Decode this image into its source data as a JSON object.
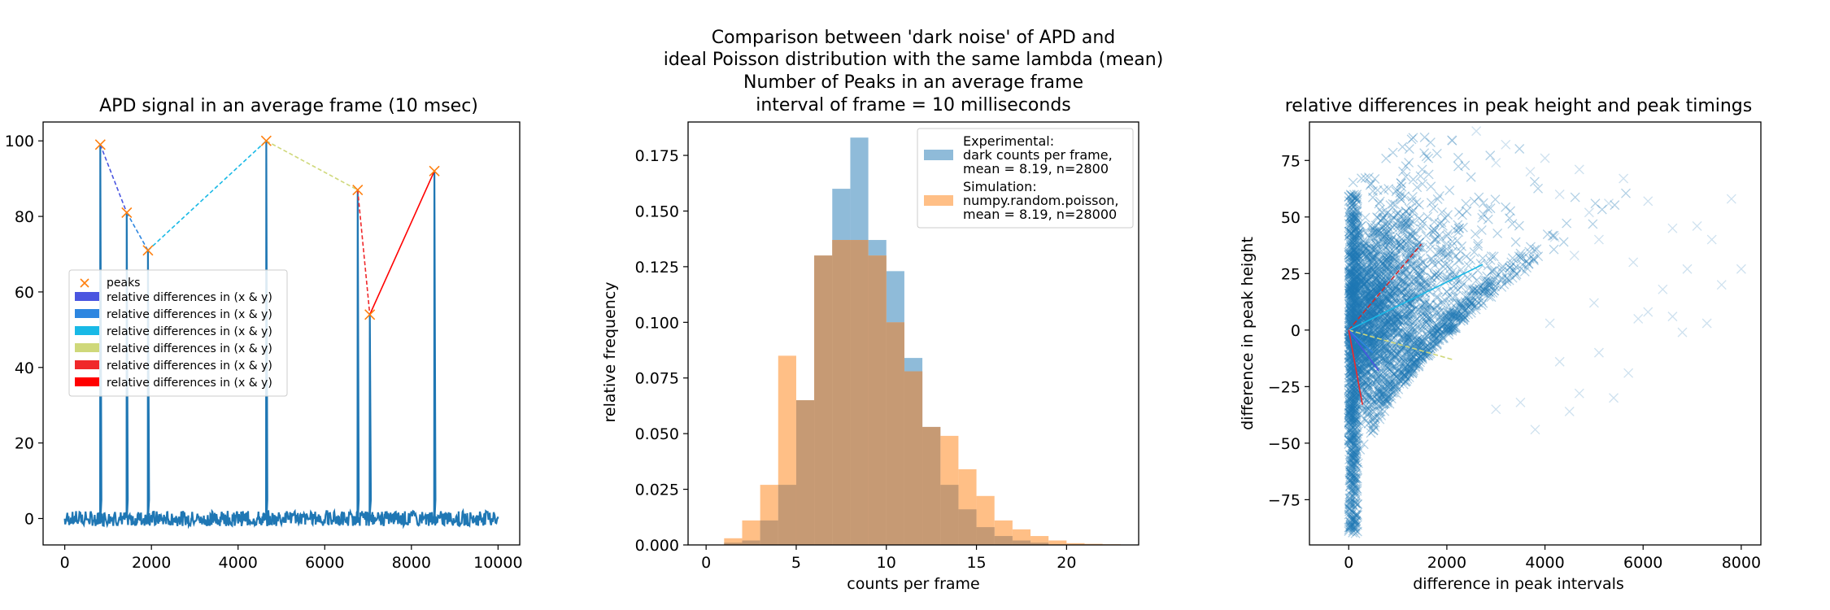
{
  "figure": {
    "suptitle": [
      "Comparison between 'dark noise' of APD and",
      "ideal Poisson distribution with the same lambda (mean)",
      "Number of Peaks in an average frame",
      "interval of frame = 10 milliseconds"
    ]
  },
  "chart_data": [
    {
      "type": "line",
      "title": "APD signal in an average frame (10 msec)",
      "xlabel": "",
      "ylabel": "",
      "xlim": [
        -500,
        10500
      ],
      "ylim": [
        -7,
        105
      ],
      "xticks": [
        0,
        2000,
        4000,
        6000,
        8000,
        10000
      ],
      "yticks": [
        0,
        20,
        40,
        60,
        80,
        100
      ],
      "signal_color": "#1f77b4",
      "baseline_range": [
        -2,
        2
      ],
      "peaks": {
        "label": "peaks",
        "color": "#ff7f0e",
        "x": [
          820,
          1430,
          1920,
          4650,
          6760,
          7040,
          8530
        ],
        "y": [
          99,
          81,
          71,
          100,
          87,
          54,
          92
        ]
      },
      "segments": [
        {
          "name": "relative differences in (x & y)",
          "color": "#4a55e0",
          "x": [
            820,
            1430
          ],
          "y": [
            99,
            81
          ]
        },
        {
          "name": "relative differences in (x & y)",
          "color": "#2d86e0",
          "x": [
            1430,
            1920
          ],
          "y": [
            81,
            71
          ]
        },
        {
          "name": "relative differences in (x & y)",
          "color": "#19b9e6",
          "x": [
            1920,
            4650
          ],
          "y": [
            71,
            100
          ]
        },
        {
          "name": "relative differences in (x & y)",
          "color": "#cfd87a",
          "x": [
            4650,
            6760
          ],
          "y": [
            100,
            87
          ]
        },
        {
          "name": "relative differences in (x & y)",
          "color": "#f0282a",
          "x": [
            6760,
            7040
          ],
          "y": [
            87,
            54
          ]
        },
        {
          "name": "relative differences in (x & y)",
          "color": "#ff0000",
          "x": [
            7040,
            8530
          ],
          "y": [
            54,
            92
          ]
        }
      ],
      "legend_position": "center-left"
    },
    {
      "type": "bar",
      "title": "",
      "xlabel": "counts per frame",
      "ylabel": "relative frequency",
      "xlim": [
        -1,
        24
      ],
      "ylim": [
        0,
        0.19
      ],
      "xticks": [
        0,
        5,
        10,
        15,
        20
      ],
      "yticks": [
        "0.000",
        "0.025",
        "0.050",
        "0.075",
        "0.100",
        "0.125",
        "0.150",
        "0.175"
      ],
      "ytick_values": [
        0,
        0.025,
        0.05,
        0.075,
        0.1,
        0.125,
        0.15,
        0.175
      ],
      "series": [
        {
          "name": "Experimental:\ndark counts per frame,\nmean = 8.19, n=2800",
          "color": "#8fbbd9",
          "bins": [
            [
              1,
              2,
              0.001
            ],
            [
              2,
              3,
              0.002
            ],
            [
              3,
              4,
              0.011
            ],
            [
              4,
              5,
              0.027
            ],
            [
              5,
              6,
              0.065
            ],
            [
              6,
              7,
              0.13
            ],
            [
              7,
              8,
              0.16
            ],
            [
              8,
              9,
              0.183
            ],
            [
              9,
              10,
              0.137
            ],
            [
              10,
              11,
              0.123
            ],
            [
              11,
              12,
              0.084
            ],
            [
              12,
              13,
              0.053
            ],
            [
              13,
              14,
              0.027
            ],
            [
              14,
              15,
              0.016
            ],
            [
              15,
              16,
              0.008
            ],
            [
              16,
              17,
              0.004
            ],
            [
              17,
              18,
              0.002
            ],
            [
              18,
              19,
              0.001
            ]
          ]
        },
        {
          "name": "Simulation:\nnumpy.random.poisson,\nmean = 8.19, n=28000",
          "color": "#ffbf86",
          "bins": [
            [
              1,
              2,
              0.003
            ],
            [
              2,
              3,
              0.011
            ],
            [
              3,
              4,
              0.027
            ],
            [
              4,
              5,
              0.085
            ],
            [
              5,
              6,
              0.065
            ],
            [
              6,
              7,
              0.13
            ],
            [
              7,
              8,
              0.137
            ],
            [
              8,
              9,
              0.137
            ],
            [
              9,
              10,
              0.13
            ],
            [
              10,
              11,
              0.1
            ],
            [
              11,
              12,
              0.078
            ],
            [
              12,
              13,
              0.053
            ],
            [
              13,
              14,
              0.049
            ],
            [
              14,
              15,
              0.034
            ],
            [
              15,
              16,
              0.022
            ],
            [
              16,
              17,
              0.011
            ],
            [
              17,
              18,
              0.007
            ],
            [
              18,
              19,
              0.004
            ],
            [
              19,
              20,
              0.002
            ],
            [
              20,
              21,
              0.0008
            ],
            [
              21,
              22,
              0.0005
            ],
            [
              22,
              23,
              0.0003
            ]
          ]
        }
      ],
      "overlap_color": "#c69a74",
      "legend_position": "top-right"
    },
    {
      "type": "scatter",
      "title": "relative differences in peak height and peak timings",
      "xlabel": "difference in peak intervals",
      "ylabel": "difference in peak height",
      "xlim": [
        -800,
        8400
      ],
      "ylim": [
        -95,
        92
      ],
      "xticks": [
        0,
        2000,
        4000,
        6000,
        8000
      ],
      "yticks": [
        -75,
        -50,
        -25,
        0,
        25,
        50,
        75
      ],
      "marker": "x",
      "point_color": "#1f77b4",
      "outlier_points": [
        [
          3200,
          82
        ],
        [
          4000,
          76
        ],
        [
          4300,
          60
        ],
        [
          4700,
          71
        ],
        [
          5300,
          56
        ],
        [
          5600,
          67
        ],
        [
          5100,
          40
        ],
        [
          6100,
          57
        ],
        [
          6600,
          45
        ],
        [
          7100,
          46
        ],
        [
          7400,
          40
        ],
        [
          7800,
          58
        ],
        [
          4200,
          41
        ],
        [
          4600,
          33
        ],
        [
          5800,
          30
        ],
        [
          6400,
          18
        ],
        [
          6900,
          27
        ],
        [
          7600,
          20
        ],
        [
          8000,
          27
        ],
        [
          5000,
          12
        ],
        [
          5900,
          5
        ],
        [
          6600,
          6
        ],
        [
          7300,
          3
        ],
        [
          6800,
          -1
        ],
        [
          4300,
          -14
        ],
        [
          5100,
          -10
        ],
        [
          5700,
          -19
        ],
        [
          4700,
          -28
        ],
        [
          5400,
          -30
        ],
        [
          4500,
          -36
        ],
        [
          3800,
          -44
        ],
        [
          3500,
          -32
        ],
        [
          3000,
          -35
        ],
        [
          6100,
          8
        ],
        [
          2600,
          88
        ],
        [
          2100,
          84
        ],
        [
          3700,
          70
        ],
        [
          3000,
          74
        ],
        [
          4900,
          52
        ],
        [
          4100,
          3
        ]
      ],
      "vectors": [
        {
          "color": "#d62728",
          "x": [
            0,
            1480
          ],
          "y": [
            0,
            38
          ]
        },
        {
          "color": "#19b9e6",
          "x": [
            0,
            2730
          ],
          "y": [
            0,
            29
          ]
        },
        {
          "color": "#cfd87a",
          "x": [
            0,
            2110
          ],
          "y": [
            0,
            -13
          ]
        },
        {
          "color": "#2d86e0",
          "x": [
            0,
            490
          ],
          "y": [
            0,
            -10
          ]
        },
        {
          "color": "#4a55e0",
          "x": [
            0,
            610
          ],
          "y": [
            0,
            -18
          ]
        },
        {
          "color": "#f0282a",
          "x": [
            0,
            280
          ],
          "y": [
            0,
            -33
          ]
        }
      ]
    }
  ]
}
